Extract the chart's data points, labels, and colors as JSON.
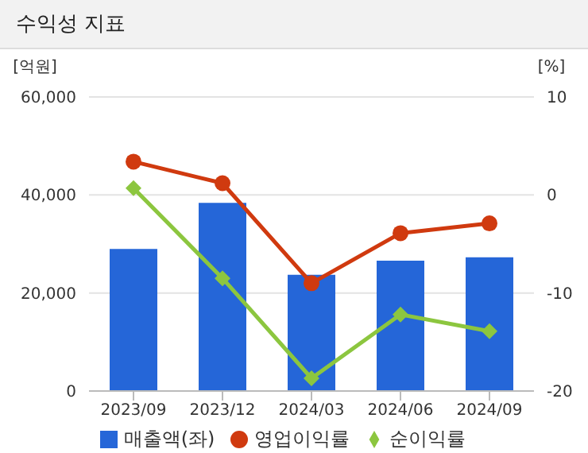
{
  "chart_data": {
    "type": "bar",
    "title": "수익성 지표",
    "ylabel": "[억원]",
    "y2label": "[%]",
    "categories": [
      "2023/09",
      "2023/12",
      "2024/03",
      "2024/06",
      "2024/09"
    ],
    "series": [
      {
        "name": "매출액(좌)",
        "color": "#2566d8",
        "values": [
          29000,
          38400,
          23700,
          26600,
          27300
        ]
      },
      {
        "name": "영업이익률",
        "type": "line",
        "axis": "y2",
        "marker": "circle",
        "color": "#d03a0f",
        "values": [
          3.4,
          1.2,
          -9.0,
          -3.9,
          -2.9
        ]
      },
      {
        "name": "순이익률",
        "type": "line",
        "axis": "y2",
        "marker": "diamond",
        "color": "#8cc63f",
        "values": [
          0.7,
          -8.5,
          -18.7,
          -12.2,
          -13.9
        ]
      }
    ],
    "ylim": [
      0,
      60000
    ],
    "yticks": [
      {
        "value": 0,
        "label": "0"
      },
      {
        "value": 20000,
        "label": "20,000"
      },
      {
        "value": 40000,
        "label": "40,000"
      },
      {
        "value": 60000,
        "label": "60,000"
      }
    ],
    "y2lim": [
      -20,
      10
    ],
    "y2ticks": [
      -20,
      -10,
      0,
      10
    ],
    "grid": "y",
    "legend": "bottom"
  }
}
